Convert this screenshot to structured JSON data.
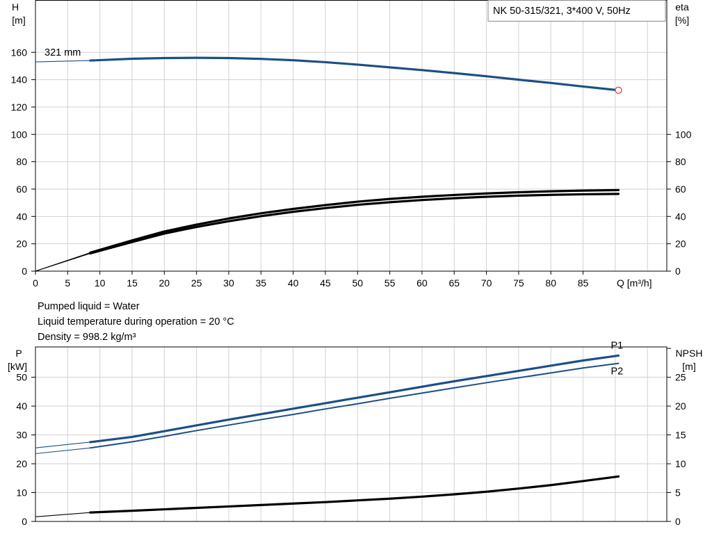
{
  "info": {
    "pump_title": "NK 50-315/321, 3*400 V, 50Hz",
    "impeller_label": "321 mm",
    "lines": [
      "Pumped liquid = Water",
      "Liquid temperature during operation = 20 °C",
      "Density = 998.2 kg/m³"
    ]
  },
  "colors": {
    "blue": "#1c4f86",
    "black": "#000000",
    "marker": "#e0392b",
    "grid": "#d2d2d2"
  },
  "chart_data": [
    {
      "type": "line",
      "x_axis": {
        "label": "Q [m³/h]",
        "range": [
          0,
          98
        ],
        "ticks": [
          0,
          5,
          10,
          15,
          20,
          25,
          30,
          35,
          40,
          45,
          50,
          55,
          60,
          65,
          70,
          75,
          80,
          85
        ]
      },
      "y_left": {
        "label_line1": "H",
        "label_line2": "[m]",
        "range": [
          0,
          198
        ],
        "ticks": [
          0,
          20,
          40,
          60,
          80,
          100,
          120,
          140,
          160
        ]
      },
      "y_right": {
        "label_line1": "eta",
        "label_line2": "[%]",
        "range": [
          0,
          198
        ],
        "ticks": [
          0,
          20,
          40,
          60,
          80,
          100
        ],
        "tick_labels": [
          "0",
          "20",
          "40",
          "60",
          "80",
          "100"
        ]
      },
      "grid": true,
      "series": [
        {
          "color": "blue",
          "axis": "left",
          "weight": "thick",
          "x": [
            8.5,
            15,
            20,
            25,
            30,
            35,
            40,
            45,
            50,
            55,
            60,
            65,
            70,
            75,
            80,
            85,
            90.5
          ],
          "y": [
            154,
            155.3,
            155.8,
            156,
            155.8,
            155.2,
            154.2,
            152.8,
            151,
            149,
            147,
            144.8,
            142.5,
            140,
            137.6,
            135,
            132.3
          ]
        },
        {
          "color": "blue",
          "axis": "left",
          "weight": "thin",
          "x": [
            0,
            8.5
          ],
          "y": [
            153,
            154
          ]
        },
        {
          "color": "black",
          "axis": "right",
          "weight": "thick",
          "x": [
            8.5,
            15,
            20,
            25,
            30,
            35,
            40,
            45,
            50,
            55,
            60,
            65,
            70,
            75,
            80,
            85,
            90.5
          ],
          "y": [
            13.5,
            22.5,
            29,
            34,
            38.5,
            42.3,
            45.5,
            48.3,
            50.8,
            52.8,
            54.4,
            55.7,
            56.8,
            57.7,
            58.4,
            58.9,
            59.3
          ]
        },
        {
          "color": "black",
          "axis": "right",
          "weight": "thick",
          "x": [
            8.5,
            15,
            20,
            25,
            30,
            35,
            40,
            45,
            50,
            55,
            60,
            65,
            70,
            75,
            80,
            85,
            90.5
          ],
          "y": [
            13,
            21.3,
            27.5,
            32.3,
            36.5,
            40.2,
            43.4,
            46.1,
            48.5,
            50.4,
            52,
            53.3,
            54.4,
            55.2,
            55.8,
            56.2,
            56.5
          ]
        },
        {
          "color": "black",
          "axis": "right",
          "weight": "thin",
          "x": [
            0,
            8.5
          ],
          "y": [
            0,
            13.5
          ]
        },
        {
          "color": "black",
          "axis": "right",
          "weight": "thin",
          "x": [
            0,
            8.5
          ],
          "y": [
            0,
            13
          ]
        }
      ],
      "end_marker": {
        "x": 90.5,
        "y": 132.3
      }
    },
    {
      "type": "line",
      "x_axis": {
        "range": [
          0,
          98
        ],
        "ticks": [
          0,
          5,
          10,
          15,
          20,
          25,
          30,
          35,
          40,
          45,
          50,
          55,
          60,
          65,
          70,
          75,
          80,
          85
        ]
      },
      "y_left": {
        "label_line1": "P",
        "label_line2": "[kW]",
        "range": [
          0,
          60.5
        ],
        "ticks": [
          0,
          10,
          20,
          30,
          40,
          50
        ]
      },
      "y_right": {
        "label_line1": "NPSH",
        "label_line2": "[m]",
        "range": [
          0,
          30.25
        ],
        "ticks": [
          0,
          5,
          10,
          15,
          20,
          25,
          30
        ],
        "tick_labels": [
          "0",
          "5",
          "10",
          "15",
          "20",
          "25",
          ""
        ]
      },
      "grid": true,
      "series": [
        {
          "name": "P1",
          "color": "blue",
          "axis": "left",
          "weight": "thick",
          "x": [
            8.5,
            15,
            20,
            25,
            30,
            35,
            40,
            45,
            50,
            55,
            60,
            65,
            70,
            75,
            80,
            85,
            90.5
          ],
          "y": [
            27.5,
            29.3,
            31.3,
            33.3,
            35.3,
            37.2,
            39.1,
            41,
            42.9,
            44.8,
            46.7,
            48.6,
            50.4,
            52.2,
            54,
            55.8,
            57.5
          ]
        },
        {
          "name": "P2",
          "color": "blue",
          "axis": "left",
          "weight": "medium",
          "x": [
            8.5,
            15,
            20,
            25,
            30,
            35,
            40,
            45,
            50,
            55,
            60,
            65,
            70,
            75,
            80,
            85,
            90.5
          ],
          "y": [
            25.5,
            27.6,
            29.5,
            31.5,
            33.4,
            35.3,
            37.1,
            39,
            40.8,
            42.7,
            44.5,
            46.3,
            48.1,
            49.8,
            51.5,
            53.2,
            54.8
          ]
        },
        {
          "color": "blue",
          "axis": "left",
          "weight": "thin",
          "x": [
            0,
            8.5
          ],
          "y": [
            25.5,
            27.5
          ]
        },
        {
          "color": "blue",
          "axis": "left",
          "weight": "thin",
          "x": [
            0,
            8.5
          ],
          "y": [
            23.5,
            25.5
          ]
        },
        {
          "color": "black",
          "axis": "right",
          "weight": "thick",
          "x": [
            8.5,
            15,
            20,
            25,
            30,
            35,
            40,
            45,
            50,
            55,
            60,
            65,
            70,
            75,
            80,
            85,
            90.5
          ],
          "y": [
            1.55,
            1.85,
            2.1,
            2.35,
            2.6,
            2.85,
            3.1,
            3.35,
            3.65,
            3.95,
            4.3,
            4.7,
            5.15,
            5.7,
            6.3,
            7,
            7.8
          ]
        },
        {
          "color": "black",
          "axis": "right",
          "weight": "thin",
          "x": [
            0,
            8.5
          ],
          "y": [
            0.8,
            1.55
          ]
        }
      ]
    }
  ]
}
